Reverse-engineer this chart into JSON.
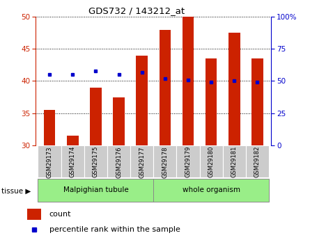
{
  "title": "GDS732 / 143212_at",
  "samples": [
    "GSM29173",
    "GSM29174",
    "GSM29175",
    "GSM29176",
    "GSM29177",
    "GSM29178",
    "GSM29179",
    "GSM29180",
    "GSM29181",
    "GSM29182"
  ],
  "count_values": [
    35.5,
    31.5,
    39.0,
    37.5,
    44.0,
    48.0,
    50.0,
    43.5,
    47.5,
    43.5
  ],
  "percentile_values": [
    55,
    55,
    58,
    55,
    57,
    52,
    51,
    49,
    50,
    49
  ],
  "bar_bottom": 30,
  "ylim_left": [
    30,
    50
  ],
  "ylim_right": [
    0,
    100
  ],
  "yticks_left": [
    30,
    35,
    40,
    45,
    50
  ],
  "yticks_right": [
    0,
    25,
    50,
    75,
    100
  ],
  "bar_color": "#cc2200",
  "dot_color": "#0000cc",
  "tissue_bg_color": "#99ee88",
  "tick_color_left": "#cc2200",
  "tick_color_right": "#0000cc",
  "legend_count_label": "count",
  "legend_percentile_label": "percentile rank within the sample",
  "tissue_arrow_label": "tissue",
  "bar_width": 0.5,
  "tissue_groups": {
    "Malpighian tubule": [
      0,
      1,
      2,
      3,
      4
    ],
    "whole organism": [
      5,
      6,
      7,
      8,
      9
    ]
  }
}
